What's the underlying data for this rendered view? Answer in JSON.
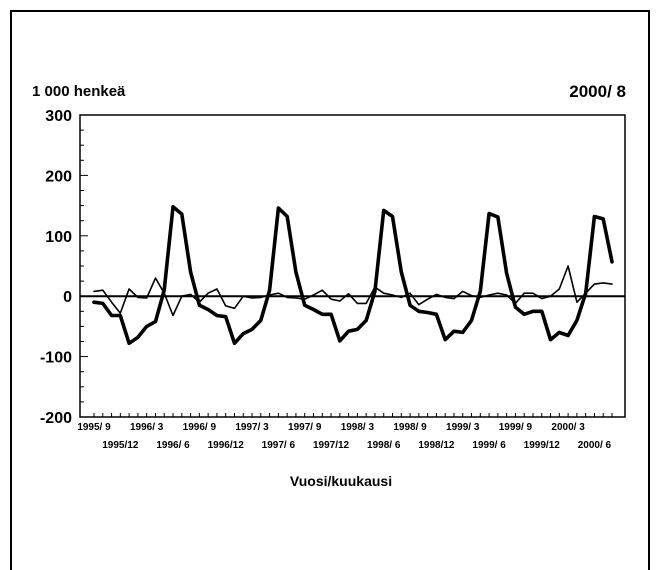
{
  "header": {
    "unit_label": "1 000 henkeä",
    "period_label": "2000/ 8"
  },
  "chart_data": {
    "type": "line",
    "title": "",
    "xlabel": "Vuosi/kuukausi",
    "ylabel": "1 000 henkeä",
    "ylim": [
      -200,
      300
    ],
    "yticks": [
      300,
      200,
      100,
      0,
      -100,
      -200
    ],
    "x": [
      "1995/9",
      "1995/10",
      "1995/11",
      "1995/12",
      "1996/1",
      "1996/2",
      "1996/3",
      "1996/4",
      "1996/5",
      "1996/6",
      "1996/7",
      "1996/8",
      "1996/9",
      "1996/10",
      "1996/11",
      "1996/12",
      "1997/1",
      "1997/2",
      "1997/3",
      "1997/4",
      "1997/5",
      "1997/6",
      "1997/7",
      "1997/8",
      "1997/9",
      "1997/10",
      "1997/11",
      "1997/12",
      "1998/1",
      "1998/2",
      "1998/3",
      "1998/4",
      "1998/5",
      "1998/6",
      "1998/7",
      "1998/8",
      "1998/9",
      "1998/10",
      "1998/11",
      "1998/12",
      "1999/1",
      "1999/2",
      "1999/3",
      "1999/4",
      "1999/5",
      "1999/6",
      "1999/7",
      "1999/8",
      "1999/9",
      "1999/10",
      "1999/11",
      "1999/12",
      "2000/1",
      "2000/2",
      "2000/3",
      "2000/4",
      "2000/5",
      "2000/6",
      "2000/7",
      "2000/8"
    ],
    "x_tick_labels": {
      "row1": [
        {
          "label": "1995/ 9",
          "index": 0
        },
        {
          "label": "1996/ 3",
          "index": 6
        },
        {
          "label": "1996/ 9",
          "index": 12
        },
        {
          "label": "1997/ 3",
          "index": 18
        },
        {
          "label": "1997/ 9",
          "index": 24
        },
        {
          "label": "1998/ 3",
          "index": 30
        },
        {
          "label": "1998/ 9",
          "index": 36
        },
        {
          "label": "1999/ 3",
          "index": 42
        },
        {
          "label": "1999/ 9",
          "index": 48
        },
        {
          "label": "2000/ 3",
          "index": 54
        }
      ],
      "row2": [
        {
          "label": "1995/12",
          "index": 3
        },
        {
          "label": "1996/ 6",
          "index": 9
        },
        {
          "label": "1996/12",
          "index": 15
        },
        {
          "label": "1997/ 6",
          "index": 21
        },
        {
          "label": "1997/12",
          "index": 27
        },
        {
          "label": "1998/ 6",
          "index": 33
        },
        {
          "label": "1998/12",
          "index": 39
        },
        {
          "label": "1999/ 6",
          "index": 45
        },
        {
          "label": "1999/12",
          "index": 51
        },
        {
          "label": "2000/ 6",
          "index": 57
        }
      ]
    },
    "series": [
      {
        "style": "thick",
        "values": [
          -10,
          -12,
          -32,
          -32,
          -78,
          -68,
          -50,
          -42,
          10,
          148,
          136,
          40,
          -15,
          -22,
          -32,
          -34,
          -78,
          -62,
          -55,
          -40,
          10,
          146,
          132,
          40,
          -15,
          -22,
          -30,
          -30,
          -74,
          -58,
          -55,
          -40,
          8,
          142,
          132,
          40,
          -15,
          -25,
          -27,
          -30,
          -72,
          -58,
          -60,
          -40,
          8,
          137,
          131,
          38,
          -18,
          -30,
          -25,
          -25,
          -72,
          -60,
          -65,
          -40,
          5,
          132,
          128,
          57
        ]
      },
      {
        "style": "thin",
        "values": [
          8,
          10,
          -10,
          -28,
          12,
          -2,
          -3,
          30,
          5,
          -32,
          0,
          3,
          -10,
          5,
          12,
          -16,
          -20,
          0,
          -3,
          -2,
          2,
          5,
          -2,
          -3,
          -5,
          2,
          10,
          -5,
          -8,
          4,
          -12,
          -12,
          15,
          5,
          2,
          -2,
          5,
          -14,
          -5,
          3,
          -2,
          -4,
          8,
          1,
          -2,
          2,
          5,
          2,
          -12,
          5,
          5,
          -4,
          0,
          12,
          50,
          -10,
          5,
          20,
          22,
          20
        ]
      }
    ],
    "grid": false,
    "legend": "none"
  }
}
